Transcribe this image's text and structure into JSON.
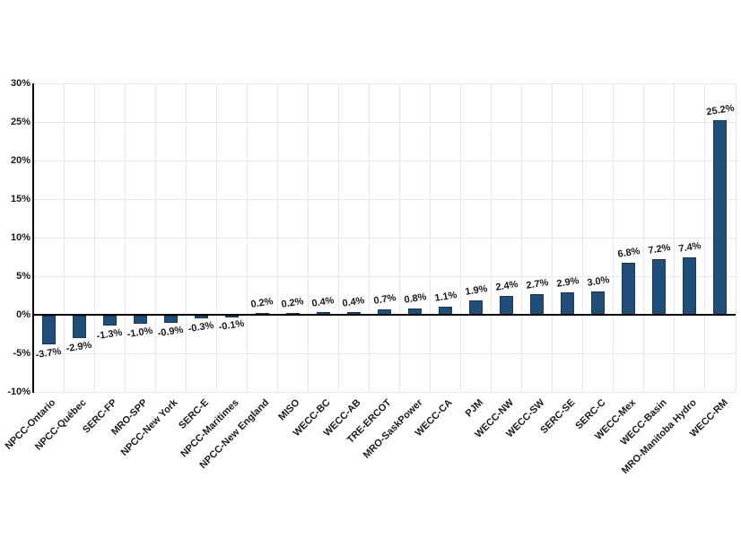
{
  "chart_data": {
    "type": "bar",
    "title": "",
    "xlabel": "",
    "ylabel": "",
    "categories": [
      "NPCC-Ontario",
      "NPCC-Québec",
      "SERC-FP",
      "MRO-SPP",
      "NPCC-New York",
      "SERC-E",
      "NPCC-Maritimes",
      "NPCC-New England",
      "MISO",
      "WECC-BC",
      "WECC-AB",
      "TRE-ERCOT",
      "MRO-SaskPower",
      "WECC-CA",
      "PJM",
      "WECC-NW",
      "WECC-SW",
      "SERC-SE",
      "SERC-C",
      "WECC-Mex",
      "WECC-Basin",
      "MRO-Manitoba Hydro",
      "WECC-RM"
    ],
    "values": [
      -3.7,
      -2.9,
      -1.3,
      -1.0,
      -0.9,
      -0.3,
      -0.1,
      0.2,
      0.2,
      0.4,
      0.4,
      0.7,
      0.8,
      1.1,
      1.9,
      2.4,
      2.7,
      2.9,
      3.0,
      6.8,
      7.2,
      7.4,
      25.2
    ],
    "labels": [
      "-3.7%",
      "-2.9%",
      "-1.3%",
      "-1.0%",
      "-0.9%",
      "-0.3%",
      "-0.1%",
      "0.2%",
      "0.2%",
      "0.4%",
      "0.4%",
      "0.7%",
      "0.8%",
      "1.1%",
      "1.9%",
      "2.4%",
      "2.7%",
      "2.9%",
      "3.0%",
      "6.8%",
      "7.2%",
      "7.4%",
      "25.2%"
    ],
    "yticks": [
      "30%",
      "25%",
      "20%",
      "15%",
      "10%",
      "5%",
      "0%",
      "-5%",
      "-10%"
    ],
    "ytick_values": [
      30,
      25,
      20,
      15,
      10,
      5,
      0,
      -5,
      -10
    ],
    "ylim": [
      -10,
      30
    ],
    "grid": "both",
    "legend": "none",
    "bar_color": "#1F4E79",
    "bar_border_color": "#17375E",
    "gridline_color": "#E7E7E7",
    "axis_color": "#000000"
  }
}
